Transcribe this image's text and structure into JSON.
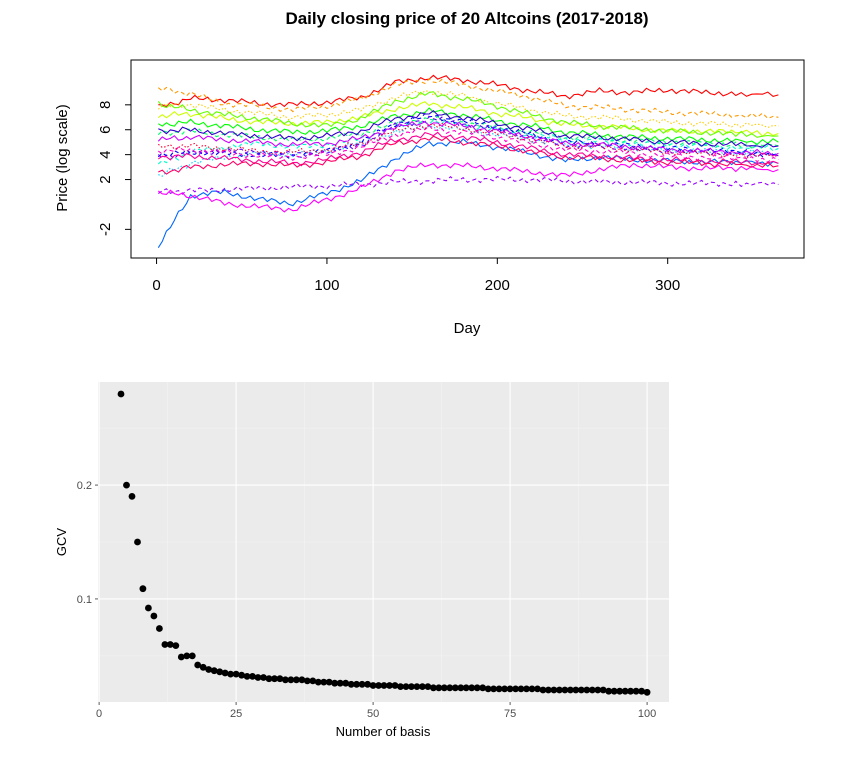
{
  "chart_data": [
    {
      "type": "line",
      "title": "Daily closing price of 20 Altcoins (2017-2018)",
      "xlabel": "Day",
      "ylabel": "Price (log scale)",
      "xlim": [
        -15,
        380
      ],
      "ylim": [
        -4.3,
        11.6
      ],
      "x_ticks": [
        0,
        100,
        200,
        300
      ],
      "y_ticks": [
        -2,
        2,
        4,
        6,
        8
      ],
      "x_ticks_text": [
        "0",
        "100",
        "200",
        "300"
      ],
      "y_ticks_text": [
        "-2",
        "2",
        "4",
        "6",
        "8"
      ],
      "grid": false,
      "legend": "none",
      "x": [
        1,
        20,
        40,
        60,
        80,
        100,
        120,
        140,
        160,
        180,
        200,
        220,
        240,
        260,
        280,
        300,
        320,
        340,
        365
      ],
      "series": [
        {
          "color": "#ff0000",
          "dash": "solid",
          "values": [
            7.8,
            8.5,
            8.4,
            8.1,
            8.0,
            8.2,
            8.6,
            9.8,
            10.2,
            10.0,
            9.6,
            9.1,
            8.7,
            9.1,
            9.0,
            9.2,
            9.0,
            8.9,
            8.8
          ]
        },
        {
          "color": "#ff9900",
          "dash": "dashed",
          "values": [
            9.3,
            8.9,
            8.1,
            7.9,
            7.6,
            7.9,
            8.5,
            9.6,
            10.0,
            9.6,
            9.1,
            8.6,
            7.9,
            7.8,
            7.6,
            7.4,
            7.3,
            7.2,
            7.0
          ]
        },
        {
          "color": "#ffcc00",
          "dash": "dotted",
          "values": [
            7.9,
            8.0,
            7.6,
            7.3,
            7.0,
            7.2,
            7.6,
            8.6,
            9.1,
            8.7,
            8.1,
            7.6,
            7.1,
            7.0,
            6.8,
            6.6,
            6.5,
            6.4,
            6.3
          ]
        },
        {
          "color": "#ccff00",
          "dash": "solid",
          "values": [
            7.1,
            7.3,
            6.9,
            6.6,
            6.5,
            6.6,
            7.0,
            7.7,
            8.1,
            7.8,
            7.3,
            6.9,
            6.4,
            6.3,
            6.1,
            5.9,
            5.9,
            5.8,
            5.7
          ]
        },
        {
          "color": "#66ff00",
          "dash": "solid",
          "values": [
            8.1,
            7.6,
            7.2,
            6.9,
            6.5,
            6.3,
            6.9,
            8.3,
            8.9,
            8.5,
            7.9,
            7.2,
            6.6,
            6.3,
            6.1,
            5.9,
            5.8,
            5.6,
            5.5
          ]
        },
        {
          "color": "#00ff00",
          "dash": "solid",
          "values": [
            6.4,
            6.6,
            6.3,
            6.0,
            5.8,
            5.9,
            6.3,
            7.1,
            7.5,
            7.2,
            6.7,
            6.3,
            5.8,
            5.6,
            5.4,
            5.3,
            5.2,
            5.1,
            5.0
          ]
        },
        {
          "color": "#00ff66",
          "dash": "dashed",
          "values": [
            5.7,
            5.9,
            5.6,
            5.4,
            5.2,
            5.3,
            5.7,
            6.5,
            6.9,
            6.6,
            6.2,
            5.8,
            5.4,
            5.3,
            5.1,
            5.0,
            4.9,
            4.8,
            4.7
          ]
        },
        {
          "color": "#00ffcc",
          "dash": "dashed",
          "values": [
            3.2,
            4.2,
            4.6,
            4.9,
            4.6,
            4.8,
            5.3,
            6.2,
            6.7,
            6.4,
            6.0,
            5.6,
            5.2,
            5.1,
            4.9,
            4.8,
            4.7,
            4.6,
            4.5
          ]
        },
        {
          "color": "#00ccff",
          "dash": "dotted",
          "values": [
            2.3,
            3.3,
            3.8,
            4.1,
            4.0,
            4.3,
            4.9,
            5.8,
            6.3,
            6.0,
            5.6,
            5.2,
            4.8,
            4.7,
            4.5,
            4.4,
            4.3,
            4.2,
            4.1
          ]
        },
        {
          "color": "#0066ff",
          "dash": "solid",
          "values": [
            -3.3,
            0.7,
            1.0,
            0.4,
            0.1,
            0.9,
            1.9,
            3.7,
            4.9,
            5.0,
            4.6,
            4.1,
            3.5,
            3.8,
            3.6,
            3.5,
            3.4,
            3.4,
            3.3
          ]
        },
        {
          "color": "#0000ff",
          "dash": "dashed",
          "values": [
            4.0,
            4.2,
            4.1,
            4.0,
            3.9,
            4.3,
            5.0,
            6.5,
            7.1,
            6.7,
            6.2,
            5.6,
            5.0,
            4.9,
            4.7,
            4.5,
            4.4,
            4.2,
            4.0
          ]
        },
        {
          "color": "#3300cc",
          "dash": "solid",
          "values": [
            5.9,
            6.0,
            5.7,
            5.5,
            5.3,
            5.5,
            5.9,
            6.9,
            7.3,
            7.0,
            6.5,
            6.0,
            5.5,
            5.4,
            5.2,
            5.0,
            4.9,
            4.8,
            4.7
          ]
        },
        {
          "color": "#6600ff",
          "dash": "dashed",
          "values": [
            3.8,
            4.1,
            4.3,
            4.2,
            4.0,
            4.2,
            4.8,
            6.3,
            6.9,
            6.5,
            6.0,
            5.4,
            4.8,
            4.7,
            4.5,
            4.3,
            4.2,
            4.1,
            3.9
          ]
        },
        {
          "color": "#9900ff",
          "dash": "dashed",
          "values": [
            1.0,
            1.1,
            1.2,
            1.3,
            1.4,
            1.5,
            1.6,
            1.8,
            1.9,
            2.0,
            2.0,
            2.0,
            1.9,
            1.8,
            1.8,
            1.7,
            1.7,
            1.7,
            1.6
          ]
        },
        {
          "color": "#cc00ff",
          "dash": "solid",
          "values": [
            5.2,
            5.4,
            5.2,
            5.0,
            4.8,
            4.9,
            5.3,
            6.2,
            6.6,
            6.3,
            5.9,
            5.4,
            4.9,
            4.8,
            4.6,
            4.4,
            4.3,
            4.2,
            4.1
          ]
        },
        {
          "color": "#ff00ff",
          "dash": "solid",
          "values": [
            1.0,
            0.7,
            0.1,
            -0.2,
            -0.4,
            0.4,
            1.3,
            2.7,
            3.2,
            3.1,
            2.9,
            2.6,
            2.3,
            2.8,
            3.2,
            3.0,
            2.9,
            2.9,
            2.8
          ]
        },
        {
          "color": "#ff00cc",
          "dash": "dashed",
          "values": [
            4.3,
            4.4,
            4.2,
            3.9,
            3.8,
            4.0,
            4.6,
            5.6,
            6.1,
            5.8,
            5.4,
            4.9,
            4.4,
            4.3,
            4.1,
            3.9,
            3.8,
            3.7,
            3.6
          ]
        },
        {
          "color": "#ff0099",
          "dash": "solid",
          "values": [
            3.8,
            3.9,
            3.7,
            3.5,
            3.3,
            3.6,
            4.2,
            5.2,
            5.6,
            5.4,
            5.0,
            4.5,
            4.0,
            3.9,
            3.7,
            3.6,
            3.5,
            3.4,
            3.3
          ]
        },
        {
          "color": "#ff0066",
          "dash": "solid",
          "values": [
            2.5,
            3.0,
            3.2,
            3.3,
            3.1,
            3.4,
            3.9,
            4.9,
            5.3,
            5.0,
            4.7,
            4.2,
            3.8,
            3.7,
            3.5,
            3.4,
            3.3,
            3.2,
            3.1
          ]
        },
        {
          "color": "#ff0033",
          "dash": "dotted",
          "values": [
            4.6,
            4.7,
            4.5,
            4.3,
            4.2,
            4.4,
            4.9,
            5.9,
            6.4,
            6.1,
            5.7,
            5.2,
            4.7,
            4.6,
            4.4,
            4.2,
            4.1,
            4.0,
            3.9
          ]
        }
      ]
    },
    {
      "type": "scatter",
      "title": "",
      "xlabel": "Number of basis",
      "ylabel": "GCV",
      "xlim": [
        -0.2,
        104
      ],
      "ylim": [
        0.0095,
        0.2905
      ],
      "x_ticks": [
        0,
        25,
        50,
        75,
        100
      ],
      "y_ticks": [
        0.1,
        0.2
      ],
      "x_ticks_text": [
        "0",
        "25",
        "50",
        "75",
        "100"
      ],
      "y_ticks_text": [
        "0.1",
        "0.2"
      ],
      "grid": true,
      "legend": "none",
      "background": "#ebebeb",
      "point_color": "#000000",
      "x": [
        4,
        5,
        6,
        7,
        8,
        9,
        10,
        11,
        12,
        13,
        14,
        15,
        16,
        17,
        18,
        19,
        20,
        21,
        22,
        23,
        24,
        25,
        26,
        27,
        28,
        29,
        30,
        31,
        32,
        33,
        34,
        35,
        36,
        37,
        38,
        39,
        40,
        41,
        42,
        43,
        44,
        45,
        46,
        47,
        48,
        49,
        50,
        51,
        52,
        53,
        54,
        55,
        56,
        57,
        58,
        59,
        60,
        61,
        62,
        63,
        64,
        65,
        66,
        67,
        68,
        69,
        70,
        71,
        72,
        73,
        74,
        75,
        76,
        77,
        78,
        79,
        80,
        81,
        82,
        83,
        84,
        85,
        86,
        87,
        88,
        89,
        90,
        91,
        92,
        93,
        94,
        95,
        96,
        97,
        98,
        99,
        100
      ],
      "y": [
        0.28,
        0.2,
        0.19,
        0.15,
        0.109,
        0.092,
        0.085,
        0.074,
        0.06,
        0.06,
        0.059,
        0.049,
        0.05,
        0.05,
        0.042,
        0.04,
        0.038,
        0.037,
        0.036,
        0.035,
        0.034,
        0.034,
        0.033,
        0.032,
        0.032,
        0.031,
        0.031,
        0.03,
        0.03,
        0.03,
        0.029,
        0.029,
        0.029,
        0.029,
        0.028,
        0.028,
        0.027,
        0.027,
        0.027,
        0.026,
        0.026,
        0.026,
        0.025,
        0.025,
        0.025,
        0.025,
        0.024,
        0.024,
        0.024,
        0.024,
        0.024,
        0.023,
        0.023,
        0.023,
        0.023,
        0.023,
        0.023,
        0.022,
        0.022,
        0.022,
        0.022,
        0.022,
        0.022,
        0.022,
        0.022,
        0.022,
        0.022,
        0.021,
        0.021,
        0.021,
        0.021,
        0.021,
        0.021,
        0.021,
        0.021,
        0.021,
        0.021,
        0.02,
        0.02,
        0.02,
        0.02,
        0.02,
        0.02,
        0.02,
        0.02,
        0.02,
        0.02,
        0.02,
        0.02,
        0.019,
        0.019,
        0.019,
        0.019,
        0.019,
        0.019,
        0.019,
        0.018
      ]
    }
  ]
}
